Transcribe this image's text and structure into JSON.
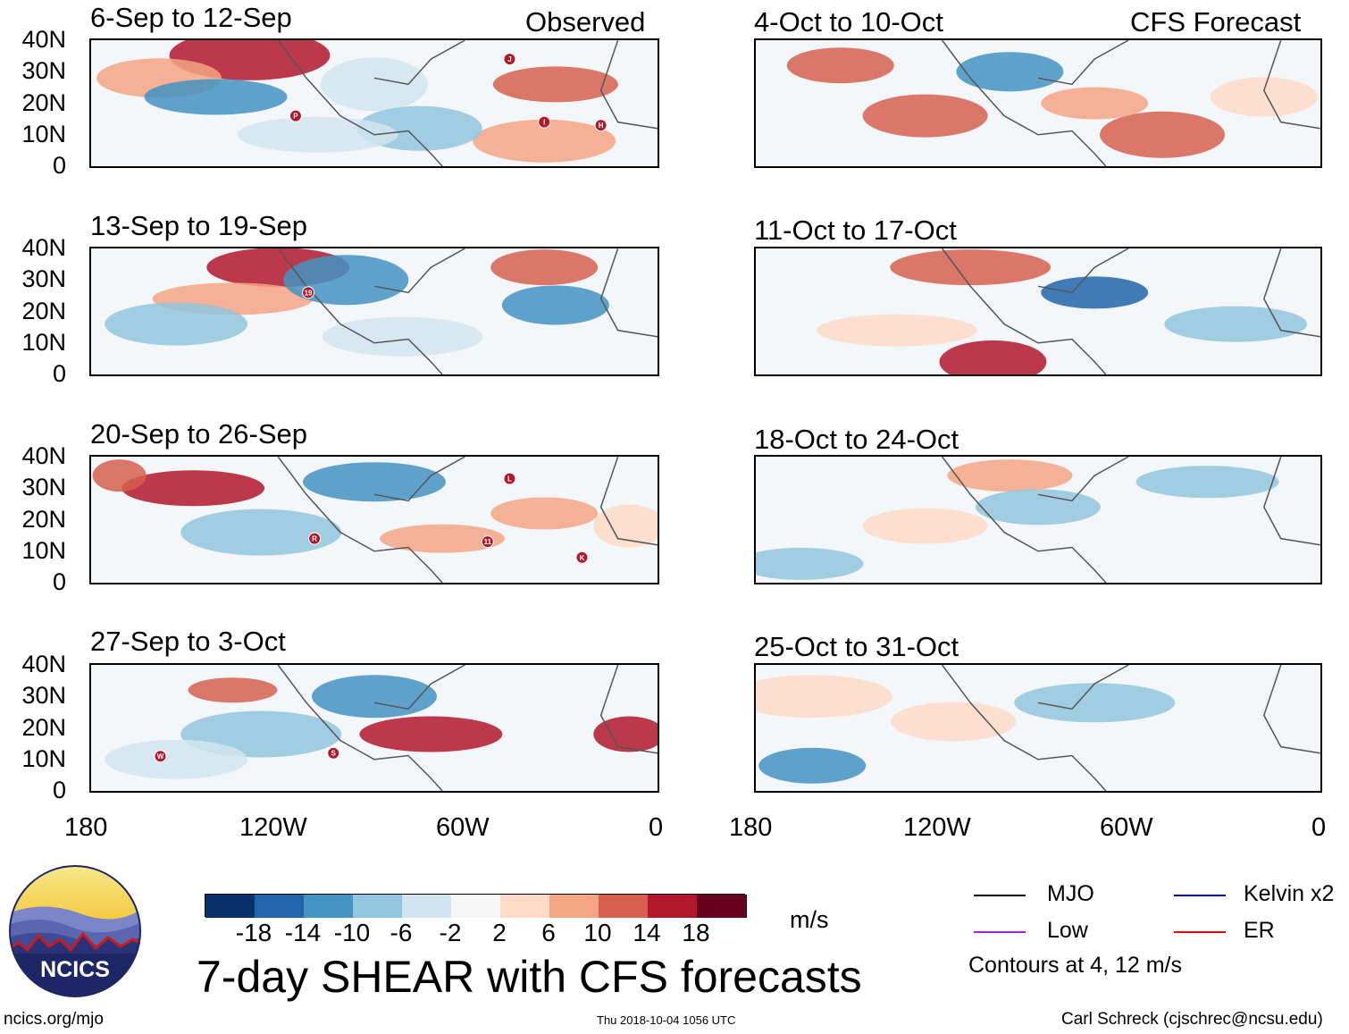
{
  "left_header_label": "Observed",
  "right_header_label": "CFS Forecast",
  "left_panels": [
    {
      "title": "6-Sep to 12-Sep"
    },
    {
      "title": "13-Sep to 19-Sep"
    },
    {
      "title": "20-Sep to 26-Sep"
    },
    {
      "title": "27-Sep to 3-Oct"
    }
  ],
  "right_panels": [
    {
      "title": "4-Oct to 10-Oct"
    },
    {
      "title": "11-Oct to 17-Oct"
    },
    {
      "title": "18-Oct to 24-Oct"
    },
    {
      "title": "25-Oct to 31-Oct"
    }
  ],
  "lat_labels": [
    "40N",
    "30N",
    "20N",
    "10N",
    "0"
  ],
  "lon_labels": [
    "180",
    "120W",
    "60W",
    "0"
  ],
  "colorbar": {
    "colors": [
      "#08306b",
      "#2166ac",
      "#4393c3",
      "#92c5de",
      "#d1e5f0",
      "#f7f7f7",
      "#fddbc7",
      "#f4a582",
      "#d6604d",
      "#b2182b",
      "#67001f"
    ],
    "tick_labels": [
      "-18",
      "-14",
      "-10",
      "-6",
      "-2",
      "2",
      "6",
      "10",
      "14",
      "18"
    ],
    "units": "m/s"
  },
  "main_title": "7-day SHEAR with CFS forecasts",
  "legend": {
    "items": [
      {
        "label": "MJO",
        "color": "#000000"
      },
      {
        "label": "Kelvin x2",
        "color": "#0000cc"
      },
      {
        "label": "Low",
        "color": "#a020f0"
      },
      {
        "label": "ER",
        "color": "#ee0000"
      }
    ],
    "note": "Contours at 4, 12 m/s"
  },
  "logo_text": "NCICS",
  "footer": {
    "url": "ncics.org/mjo",
    "timestamp": "Thu 2018-10-04 1056 UTC",
    "credit": "Carl Schreck (cjschrec@ncsu.edu)"
  },
  "storm_markers": [
    {
      "panel": 0,
      "label": "J",
      "lon": -47,
      "lat": 34
    },
    {
      "panel": 0,
      "label": "P",
      "lon": -115,
      "lat": 16
    },
    {
      "panel": 0,
      "label": "I",
      "lon": -36,
      "lat": 14
    },
    {
      "panel": 0,
      "label": "H",
      "lon": -18,
      "lat": 13
    },
    {
      "panel": 1,
      "label": "19",
      "lon": -111,
      "lat": 26
    },
    {
      "panel": 2,
      "label": "L",
      "lon": -47,
      "lat": 33
    },
    {
      "panel": 2,
      "label": "R",
      "lon": -109,
      "lat": 14
    },
    {
      "panel": 2,
      "label": "11",
      "lon": -54,
      "lat": 13
    },
    {
      "panel": 2,
      "label": "K",
      "lon": -24,
      "lat": 8
    },
    {
      "panel": 3,
      "label": "W",
      "lon": -158,
      "lat": 11
    },
    {
      "panel": 3,
      "label": "S",
      "lon": -103,
      "lat": 12
    }
  ]
}
